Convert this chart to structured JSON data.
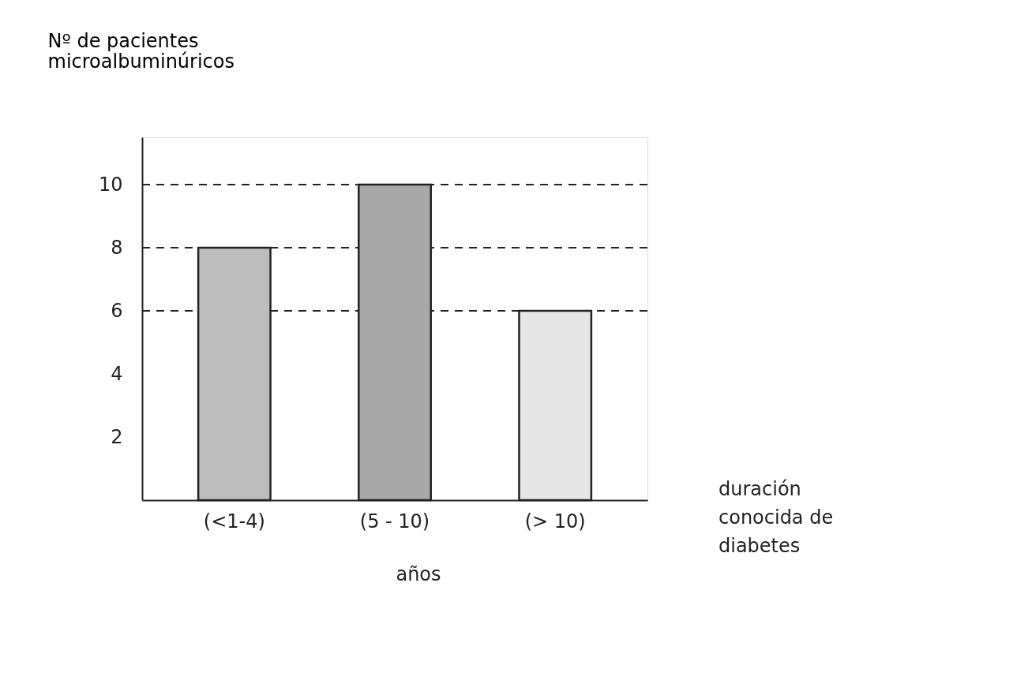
{
  "chart_data": {
    "type": "bar",
    "categories": [
      "(<1-4)",
      "(5 - 10)",
      "(> 10)"
    ],
    "values": [
      8,
      10,
      6
    ],
    "colors": [
      "#bdbdbd",
      "#a8a8a8",
      "#e6e6e6"
    ],
    "ylabel": "Nº de pacientes\nmicroalbuminúricos",
    "xlabel": "duración\nconocida de\ndiabetes",
    "annotations": [
      "años"
    ],
    "ylim": [
      0,
      11.5
    ],
    "yticks": [
      2,
      4,
      6,
      8,
      10
    ],
    "ref_lines": [
      {
        "axis": "y",
        "value": 10,
        "line_style": "dashed"
      },
      {
        "axis": "y",
        "value": 8,
        "line_style": "dashed"
      },
      {
        "axis": "y",
        "value": 6,
        "line_style": "dashed"
      }
    ],
    "grid": false
  }
}
